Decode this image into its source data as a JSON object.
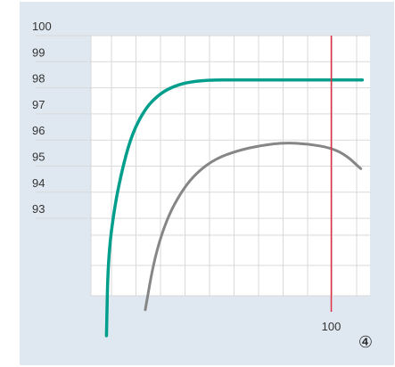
{
  "chart_data": {
    "type": "line",
    "title": "",
    "xlabel": "",
    "ylabel": "",
    "y_tick_labels": [
      "100",
      "99",
      "98",
      "97",
      "96",
      "95",
      "94",
      "93"
    ],
    "x_tick_labels": [
      "100"
    ],
    "vertical_marker": {
      "x": 100,
      "color": "#e03045"
    },
    "series": [
      {
        "color": "#009e8b",
        "points": [
          [
            -45,
            88.5
          ],
          [
            -44,
            91.4
          ],
          [
            -40,
            93.4
          ],
          [
            -34,
            95.1
          ],
          [
            -28,
            96.3
          ],
          [
            -20,
            97.2
          ],
          [
            -12,
            97.7
          ],
          [
            -4,
            98.0
          ],
          [
            6,
            98.2
          ],
          [
            20,
            98.3
          ],
          [
            40,
            98.3
          ],
          [
            70,
            98.3
          ],
          [
            85,
            98.3
          ],
          [
            120,
            98.3
          ]
        ]
      },
      {
        "color": "#868686",
        "points": [
          [
            -20,
            89.5
          ],
          [
            -14,
            91.5
          ],
          [
            -6,
            93.0
          ],
          [
            4,
            94.1
          ],
          [
            14,
            94.8
          ],
          [
            26,
            95.3
          ],
          [
            40,
            95.6
          ],
          [
            55,
            95.8
          ],
          [
            70,
            95.9
          ],
          [
            85,
            95.85
          ],
          [
            100,
            95.7
          ],
          [
            110,
            95.4
          ],
          [
            119,
            94.9
          ]
        ]
      }
    ],
    "grid": true
  },
  "badge": {
    "label": "④"
  }
}
